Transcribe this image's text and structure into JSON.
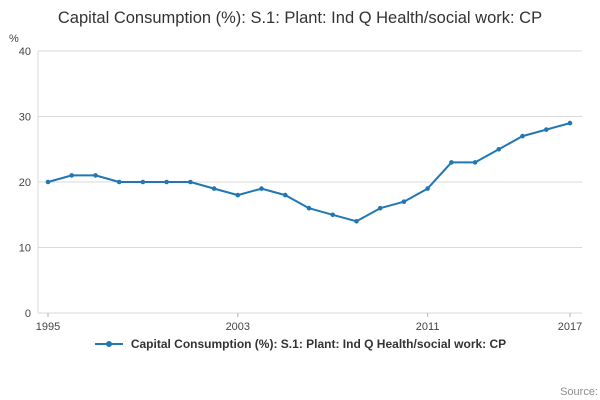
{
  "chart_data": {
    "type": "line",
    "title": "Capital Consumption (%): S.1: Plant: Ind Q Health/social work: CP",
    "ylabel": "%",
    "xlabel": "",
    "x": [
      1995,
      1996,
      1997,
      1998,
      1999,
      2000,
      2001,
      2002,
      2003,
      2004,
      2005,
      2006,
      2007,
      2008,
      2009,
      2010,
      2011,
      2012,
      2013,
      2014,
      2015,
      2016,
      2017
    ],
    "series": [
      {
        "name": "Capital Consumption (%): S.1: Plant: Ind Q Health/social work: CP",
        "values": [
          20,
          21,
          21,
          20,
          20,
          20,
          20,
          19,
          18,
          19,
          18,
          16,
          15,
          14,
          16,
          17,
          19,
          23,
          23,
          25,
          27,
          28,
          29
        ]
      }
    ],
    "ylim": [
      0,
      40
    ],
    "yticks": [
      0,
      10,
      20,
      30,
      40
    ],
    "xticks": [
      1995,
      2003,
      2011,
      2017
    ],
    "grid": true,
    "legend_position": "bottom"
  },
  "source_label": "Source:",
  "colors": {
    "line": "#2077b4",
    "grid": "#d9d9d9",
    "tick_text": "#444444",
    "title_text": "#333333",
    "source_text": "#8f8f8f",
    "tick_mark": "#b3b3b3"
  }
}
